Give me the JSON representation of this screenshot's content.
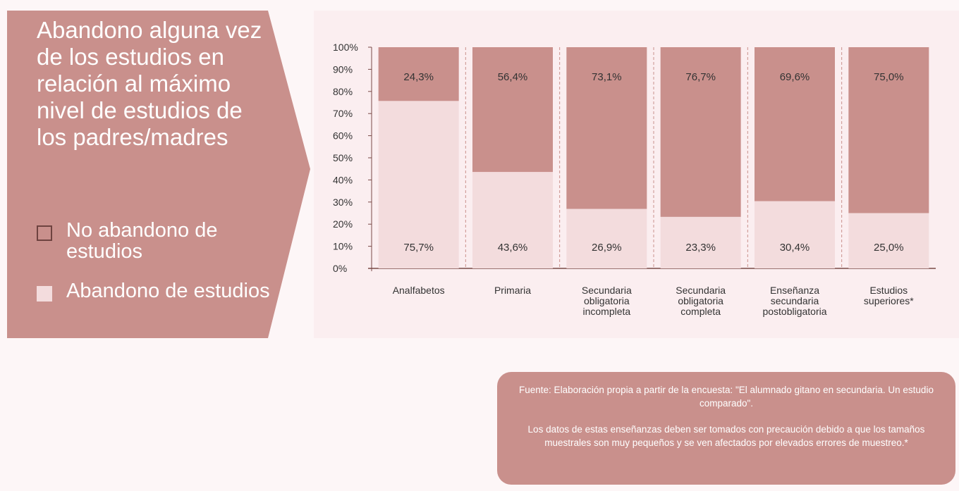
{
  "chart_data": {
    "type": "stacked_bar",
    "title": "Abandono alguna vez de los estudios en relación al máximo nivel de estudios de los padres/madres",
    "categories": [
      "Analfabetos",
      "Primaria",
      "Secundaria obligatoria incompleta",
      "Secundaria obligatoria completa",
      "Enseñanza secundaria postobligatoria",
      "Estudios superiores*"
    ],
    "series": [
      {
        "name": "No abandono de estudios",
        "color": "#c9908c",
        "values": [
          24.3,
          56.4,
          73.1,
          76.7,
          69.6,
          75.0
        ],
        "value_labels": [
          "24,3%",
          "56,4%",
          "73,1%",
          "76,7%",
          "69,6%",
          "75,0%"
        ]
      },
      {
        "name": "Abandono de estudios",
        "color": "#f3dcdd",
        "values": [
          75.7,
          43.6,
          26.9,
          23.3,
          30.4,
          25.0
        ],
        "value_labels": [
          "75,7%",
          "43,6%",
          "26,9%",
          "23,3%",
          "30,4%",
          "25,0%"
        ]
      }
    ],
    "ylim": [
      0,
      100
    ],
    "yticks": [
      {
        "value": 0,
        "label": "0%"
      },
      {
        "value": 10,
        "label": "10%"
      },
      {
        "value": 20,
        "label": "20%"
      },
      {
        "value": 30,
        "label": "30%"
      },
      {
        "value": 40,
        "label": "40%"
      },
      {
        "value": 50,
        "label": "50%"
      },
      {
        "value": 60,
        "label": "60%"
      },
      {
        "value": 70,
        "label": "70%"
      },
      {
        "value": 80,
        "label": "80%"
      },
      {
        "value": 90,
        "label": "90%"
      },
      {
        "value": 100,
        "label": "100%"
      }
    ],
    "source": "Fuente: Elaboración propia a partir de la encuesta: \"El alumnado gitano en secundaria. Un estudio comparado\".",
    "note": "Los datos de estas enseñanzas deben ser tomados con precaución debido a que los tamaños muestrales son muy pequeños y se ven afectados por elevados errores de muestreo.*"
  }
}
